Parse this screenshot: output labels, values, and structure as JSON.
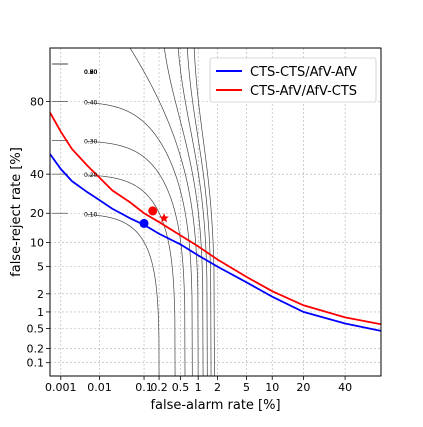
{
  "chart_data": {
    "type": "line",
    "title": "",
    "xlabel": "false-alarm rate [%]",
    "ylabel": "false-reject rate [%]",
    "x_scale": "probit",
    "y_scale": "probit",
    "xlim": [
      0.0005,
      60
    ],
    "ylim": [
      0.05,
      95
    ],
    "x_ticks": [
      {
        "v": 0.001,
        "label": "0.001"
      },
      {
        "v": 0.01,
        "label": "0.01"
      },
      {
        "v": 0.1,
        "label": "0.1"
      },
      {
        "v": 0.2,
        "label": "0.2"
      },
      {
        "v": 0.5,
        "label": "0.5"
      },
      {
        "v": 1,
        "label": "1"
      },
      {
        "v": 2,
        "label": "2"
      },
      {
        "v": 5,
        "label": "5"
      },
      {
        "v": 10,
        "label": "10"
      },
      {
        "v": 20,
        "label": "20"
      },
      {
        "v": 40,
        "label": "40"
      }
    ],
    "y_ticks": [
      {
        "v": 0.1,
        "label": "0.1"
      },
      {
        "v": 0.2,
        "label": "0.2"
      },
      {
        "v": 0.5,
        "label": "0.5"
      },
      {
        "v": 1,
        "label": "1"
      },
      {
        "v": 2,
        "label": "2"
      },
      {
        "v": 5,
        "label": "5"
      },
      {
        "v": 10,
        "label": "10"
      },
      {
        "v": 20,
        "label": "20"
      },
      {
        "v": 40,
        "label": "40"
      },
      {
        "v": 80,
        "label": "80"
      }
    ],
    "grid": true,
    "legend_position": "top-right",
    "iso_cost_values": [
      0.1,
      0.2,
      0.3,
      0.4,
      0.5,
      0.6,
      0.7,
      0.8,
      0.9
    ],
    "iso_cost_labels": [
      "0.10",
      "0.20",
      "0.30",
      "0.40",
      "0.50",
      "0.60",
      "0.70",
      "0.80",
      "0.90"
    ],
    "series": [
      {
        "name": "CTS-CTS/AfV-AfV",
        "color": "#0000ff",
        "x": [
          0.0005,
          0.001,
          0.002,
          0.005,
          0.01,
          0.02,
          0.05,
          0.1,
          0.2,
          0.5,
          1,
          2,
          5,
          10,
          20,
          40,
          60
        ],
        "y": [
          52,
          43,
          36,
          30,
          26,
          22,
          18,
          15.5,
          12.5,
          9.5,
          7,
          5,
          3,
          1.8,
          1.0,
          0.62,
          0.45
        ],
        "marker": {
          "x": 0.1,
          "y": 16,
          "shape": "circle"
        }
      },
      {
        "name": "CTS-AfV/AfV-CTS",
        "color": "#ff0000",
        "x": [
          0.0005,
          0.001,
          0.002,
          0.005,
          0.01,
          0.02,
          0.05,
          0.1,
          0.2,
          0.5,
          1,
          2,
          5,
          10,
          20,
          40,
          60
        ],
        "y": [
          75,
          65,
          55,
          45,
          38,
          31,
          25,
          20,
          16.5,
          12,
          9,
          6.2,
          3.6,
          2.2,
          1.3,
          0.8,
          0.6
        ],
        "marker": {
          "x": 0.15,
          "y": 21,
          "shape": "circle"
        },
        "star": {
          "x": 0.25,
          "y": 18
        }
      }
    ]
  }
}
